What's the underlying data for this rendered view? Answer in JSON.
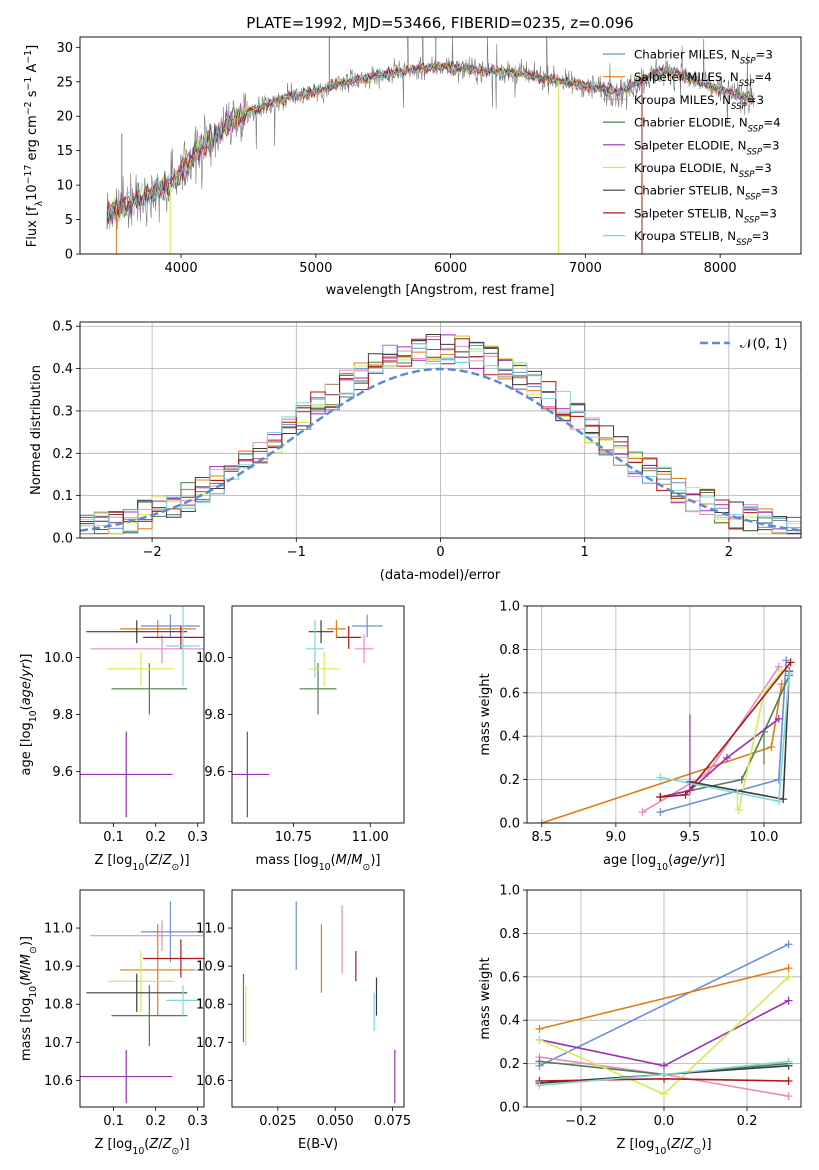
{
  "chart_data": [
    {
      "id": "spectrum",
      "type": "line",
      "title": "PLATE=1992, MJD=53466, FIBERID=0235, z=0.096",
      "xlabel": "wavelength [Angstrom, rest frame]",
      "ylabel": "Flux [f_λ10^{-17} erg cm^{-2} s^{-1} A^{-1}]",
      "xlim": [
        3250,
        8600
      ],
      "ylim": [
        0,
        31.5
      ],
      "xticks": [
        4000,
        5000,
        6000,
        7000,
        8000
      ],
      "yticks": [
        0,
        5,
        10,
        15,
        20,
        25,
        30
      ],
      "grid": false,
      "legend_position": "right",
      "series": [
        {
          "name": "Chabrier MILES, N_SSP=3",
          "color": "#6a8fdb"
        },
        {
          "name": "Salpeter MILES, N_SSP=4",
          "color": "#e07b1a"
        },
        {
          "name": "Kroupa MILES, N_SSP=3",
          "color": "#e88cc0"
        },
        {
          "name": "Chabrier ELODIE, N_SSP=4",
          "color": "#4f7f4f"
        },
        {
          "name": "Salpeter ELODIE, N_SSP=3",
          "color": "#9a2fb0"
        },
        {
          "name": "Kroupa ELODIE, N_SSP=3",
          "color": "#d6ea55"
        },
        {
          "name": "Chabrier STELIB, N_SSP=3",
          "color": "#3c3c3c"
        },
        {
          "name": "Salpeter STELIB, N_SSP=3",
          "color": "#b01818"
        },
        {
          "name": "Kroupa STELIB, N_SSP=3",
          "color": "#7fd8d8"
        }
      ],
      "continuum": [
        [
          3450,
          6.2
        ],
        [
          3550,
          6.6
        ],
        [
          3650,
          7.8
        ],
        [
          3750,
          8.6
        ],
        [
          3850,
          9.4
        ],
        [
          3950,
          10.5
        ],
        [
          4050,
          13.0
        ],
        [
          4150,
          15.5
        ],
        [
          4250,
          17.0
        ],
        [
          4350,
          19.0
        ],
        [
          4450,
          20.3
        ],
        [
          4550,
          21.0
        ],
        [
          4650,
          21.8
        ],
        [
          4750,
          22.5
        ],
        [
          4850,
          23.0
        ],
        [
          4950,
          23.4
        ],
        [
          5050,
          23.7
        ],
        [
          5150,
          24.6
        ],
        [
          5250,
          25.0
        ],
        [
          5350,
          25.4
        ],
        [
          5450,
          25.8
        ],
        [
          5550,
          26.2
        ],
        [
          5650,
          26.5
        ],
        [
          5750,
          26.8
        ],
        [
          5850,
          27.0
        ],
        [
          5950,
          27.3
        ],
        [
          6050,
          27.0
        ],
        [
          6150,
          26.8
        ],
        [
          6250,
          26.6
        ],
        [
          6350,
          26.5
        ],
        [
          6450,
          26.3
        ],
        [
          6550,
          26.0
        ],
        [
          6650,
          25.6
        ],
        [
          6750,
          25.4
        ],
        [
          6850,
          25.0
        ],
        [
          6950,
          24.6
        ],
        [
          7050,
          24.3
        ],
        [
          7150,
          23.8
        ],
        [
          7250,
          23.5
        ],
        [
          7350,
          24.5
        ],
        [
          7450,
          25.5
        ],
        [
          7550,
          26.5
        ],
        [
          7650,
          26.3
        ],
        [
          7750,
          25.6
        ],
        [
          7850,
          24.9
        ],
        [
          7950,
          24.2
        ],
        [
          8050,
          23.5
        ],
        [
          8150,
          23.0
        ],
        [
          8250,
          22.5
        ]
      ]
    },
    {
      "id": "residuals",
      "type": "histogram",
      "xlabel": "(data-model)/error",
      "ylabel": "Normed distribution",
      "xlim": [
        -2.5,
        2.5
      ],
      "ylim": [
        0,
        0.51
      ],
      "xticks": [
        -2,
        -1,
        0,
        1,
        2
      ],
      "yticks": [
        0.0,
        0.1,
        0.2,
        0.3,
        0.4,
        0.5
      ],
      "grid": true,
      "legend_position": "top-right",
      "legend": "𝒩(0, 1)",
      "reference_curve": {
        "type": "gaussian",
        "mean": 0,
        "sigma": 1,
        "color": "#5b8bd4"
      },
      "bin_edges_start": -2.5,
      "bin_width": 0.1,
      "note_values": "series hist values are per-bin densities",
      "series_colors": [
        "#6a8fdb",
        "#e07b1a",
        "#e88cc0",
        "#4f7f4f",
        "#9a2fb0",
        "#d6ea55",
        "#3c3c3c",
        "#b01818",
        "#7fd8d8"
      ]
    },
    {
      "id": "age-z",
      "type": "errorbar",
      "xlabel": "Z [log10(Z/Z⊙)]",
      "ylabel": "age [log10(age/yr)]",
      "xlim": [
        0.02,
        0.315
      ],
      "ylim": [
        9.42,
        10.18
      ],
      "xticks": [
        0.1,
        0.2,
        0.3
      ],
      "yticks": [
        9.6,
        9.8,
        10.0
      ],
      "points": [
        {
          "x": 0.235,
          "y": 10.11,
          "xerr": 0.07,
          "yerr": 0.04,
          "color": "#6a8fdb"
        },
        {
          "x": 0.205,
          "y": 10.1,
          "xerr": 0.09,
          "yerr": 0.03,
          "color": "#e07b1a"
        },
        {
          "x": 0.215,
          "y": 10.03,
          "xerr": 0.17,
          "yerr": 0.05,
          "color": "#e88cc0"
        },
        {
          "x": 0.185,
          "y": 9.89,
          "xerr": 0.09,
          "yerr": 0.09,
          "color": "#4f7f4f"
        },
        {
          "x": 0.13,
          "y": 9.59,
          "xerr": 0.11,
          "yerr": 0.15,
          "color": "#9a2fb0"
        },
        {
          "x": 0.165,
          "y": 9.96,
          "xerr": 0.08,
          "yerr": 0.06,
          "color": "#d6ea55"
        },
        {
          "x": 0.155,
          "y": 10.09,
          "xerr": 0.12,
          "yerr": 0.04,
          "color": "#3c3c3c"
        },
        {
          "x": 0.26,
          "y": 10.07,
          "xerr": 0.09,
          "yerr": 0.04,
          "color": "#b01818"
        },
        {
          "x": 0.265,
          "y": 10.04,
          "xerr": 0.04,
          "yerr": 0.14,
          "color": "#7fd8d8"
        }
      ]
    },
    {
      "id": "age-mass",
      "type": "errorbar",
      "xlabel": "mass [log10(M/M⊙)]",
      "ylabel": "",
      "xlim": [
        10.55,
        11.11
      ],
      "ylim": [
        9.42,
        10.18
      ],
      "xticks": [
        10.75,
        11.0
      ],
      "yticks": [
        9.6,
        9.8,
        10.0
      ],
      "points": [
        {
          "x": 10.99,
          "y": 10.11,
          "xerr": 0.05,
          "yerr": 0.04,
          "color": "#6a8fdb"
        },
        {
          "x": 10.89,
          "y": 10.1,
          "xerr": 0.03,
          "yerr": 0.03,
          "color": "#e07b1a"
        },
        {
          "x": 10.98,
          "y": 10.03,
          "xerr": 0.03,
          "yerr": 0.05,
          "color": "#e88cc0"
        },
        {
          "x": 10.83,
          "y": 9.89,
          "xerr": 0.06,
          "yerr": 0.09,
          "color": "#4f7f4f"
        },
        {
          "x": 10.6,
          "y": 9.59,
          "xerr": 0.07,
          "yerr": 0.15,
          "color": "#9a2fb0"
        },
        {
          "x": 10.85,
          "y": 9.96,
          "xerr": 0.05,
          "yerr": 0.06,
          "color": "#d6ea55"
        },
        {
          "x": 10.84,
          "y": 10.09,
          "xerr": 0.04,
          "yerr": 0.04,
          "color": "#3c3c3c"
        },
        {
          "x": 10.93,
          "y": 10.07,
          "xerr": 0.04,
          "yerr": 0.04,
          "color": "#b01818"
        },
        {
          "x": 10.82,
          "y": 10.03,
          "xerr": 0.03,
          "yerr": 0.1,
          "color": "#7fd8d8"
        }
      ]
    },
    {
      "id": "weight-age",
      "type": "line",
      "xlabel": "age [log10(age/yr)]",
      "ylabel": "mass weight",
      "xlim": [
        8.4,
        10.25
      ],
      "ylim": [
        0,
        1.0
      ],
      "xticks": [
        8.5,
        9.0,
        9.5,
        10.0
      ],
      "yticks": [
        0.0,
        0.2,
        0.4,
        0.6,
        0.8,
        1.0
      ],
      "grid": true,
      "series": [
        {
          "color": "#6a8fdb",
          "points": [
            [
              9.3,
              0.05
            ],
            [
              10.1,
              0.2
            ],
            [
              10.15,
              0.75
            ]
          ]
        },
        {
          "color": "#e07b1a",
          "points": [
            [
              8.5,
              0.0
            ],
            [
              10.05,
              0.35
            ],
            [
              10.12,
              0.64
            ]
          ]
        },
        {
          "color": "#e88cc0",
          "points": [
            [
              9.18,
              0.05
            ],
            [
              9.62,
              0.23
            ],
            [
              10.1,
              0.72
            ]
          ]
        },
        {
          "color": "#4f7f4f",
          "points": [
            [
              9.3,
              0.12
            ],
            [
              9.85,
              0.2
            ],
            [
              10.0,
              0.42
            ],
            [
              10.17,
              0.68
            ]
          ]
        },
        {
          "color": "#9a2fb0",
          "points": [
            [
              9.3,
              0.12
            ],
            [
              9.5,
              0.15
            ],
            [
              9.75,
              0.3
            ],
            [
              10.1,
              0.48
            ]
          ]
        },
        {
          "color": "#d6ea55",
          "points": [
            [
              9.83,
              0.06
            ],
            [
              10.0,
              0.6
            ],
            [
              10.12,
              0.7
            ]
          ]
        },
        {
          "color": "#3c3c3c",
          "points": [
            [
              9.5,
              0.19
            ],
            [
              10.13,
              0.11
            ],
            [
              10.17,
              0.7
            ]
          ]
        },
        {
          "color": "#b01818",
          "points": [
            [
              9.3,
              0.12
            ],
            [
              9.47,
              0.13
            ],
            [
              10.18,
              0.74
            ]
          ]
        },
        {
          "color": "#7fd8d8",
          "points": [
            [
              9.3,
              0.21
            ],
            [
              10.1,
              0.1
            ],
            [
              10.17,
              0.69
            ]
          ]
        }
      ],
      "errorbars": [
        {
          "x": 9.5,
          "y": 0.32,
          "yerr": 0.18,
          "color": "#9a2fb0"
        },
        {
          "x": 9.82,
          "y": 0.11,
          "yerr": 0.05,
          "color": "#d6ea55"
        },
        {
          "x": 10.0,
          "y": 0.35,
          "yerr": 0.08,
          "color": "#4f7f4f"
        }
      ]
    },
    {
      "id": "mass-z",
      "type": "errorbar",
      "xlabel": "Z [log10(Z/Z⊙)]",
      "ylabel": "mass [log10(M/M⊙)]",
      "xlim": [
        0.02,
        0.315
      ],
      "ylim": [
        10.53,
        11.1
      ],
      "xticks": [
        0.1,
        0.2,
        0.3
      ],
      "yticks": [
        10.6,
        10.7,
        10.8,
        10.9,
        11.0
      ],
      "points": [
        {
          "x": 0.235,
          "y": 10.99,
          "xerr": 0.07,
          "yerr": 0.08,
          "color": "#6a8fdb"
        },
        {
          "x": 0.205,
          "y": 10.89,
          "xerr": 0.09,
          "yerr": 0.12,
          "color": "#e07b1a"
        },
        {
          "x": 0.215,
          "y": 10.98,
          "xerr": 0.17,
          "yerr": 0.04,
          "color": "#e88cc0"
        },
        {
          "x": 0.185,
          "y": 10.77,
          "xerr": 0.09,
          "yerr": 0.08,
          "color": "#4f7f4f"
        },
        {
          "x": 0.13,
          "y": 10.61,
          "xerr": 0.11,
          "yerr": 0.07,
          "color": "#9a2fb0"
        },
        {
          "x": 0.165,
          "y": 10.86,
          "xerr": 0.08,
          "yerr": 0.08,
          "color": "#d6ea55"
        },
        {
          "x": 0.155,
          "y": 10.83,
          "xerr": 0.12,
          "yerr": 0.05,
          "color": "#3c3c3c"
        },
        {
          "x": 0.26,
          "y": 10.92,
          "xerr": 0.09,
          "yerr": 0.05,
          "color": "#b01818"
        },
        {
          "x": 0.265,
          "y": 10.81,
          "xerr": 0.04,
          "yerr": 0.04,
          "color": "#7fd8d8"
        }
      ]
    },
    {
      "id": "mass-ebv",
      "type": "errorbar",
      "xlabel": "E(B-V)",
      "ylabel": "",
      "xlim": [
        0.005,
        0.08
      ],
      "ylim": [
        10.53,
        11.1
      ],
      "xticks": [
        0.025,
        0.05,
        0.075
      ],
      "yticks": [
        10.6,
        10.7,
        10.8,
        10.9,
        11.0
      ],
      "points": [
        {
          "x": 0.033,
          "y": 10.98,
          "yerr": 0.09,
          "color": "#6a8fdb"
        },
        {
          "x": 0.044,
          "y": 10.92,
          "yerr": 0.09,
          "color": "#e07b1a"
        },
        {
          "x": 0.053,
          "y": 10.97,
          "yerr": 0.09,
          "color": "#e88cc0"
        },
        {
          "x": 0.01,
          "y": 10.79,
          "yerr": 0.09,
          "color": "#4f7f4f"
        },
        {
          "x": 0.076,
          "y": 10.61,
          "yerr": 0.07,
          "color": "#9a2fb0"
        },
        {
          "x": 0.011,
          "y": 10.77,
          "yerr": 0.08,
          "color": "#d6ea55"
        },
        {
          "x": 0.068,
          "y": 10.82,
          "yerr": 0.05,
          "color": "#3c3c3c"
        },
        {
          "x": 0.059,
          "y": 10.9,
          "yerr": 0.04,
          "color": "#b01818"
        },
        {
          "x": 0.067,
          "y": 10.78,
          "yerr": 0.05,
          "color": "#7fd8d8"
        }
      ]
    },
    {
      "id": "weight-z",
      "type": "line",
      "xlabel": "Z [log10(Z/Z⊙)]",
      "ylabel": "mass weight",
      "xlim": [
        -0.33,
        0.33
      ],
      "ylim": [
        0,
        1.0
      ],
      "xticks": [
        -0.2,
        0.0,
        0.2
      ],
      "yticks": [
        0.0,
        0.2,
        0.4,
        0.6,
        0.8,
        1.0
      ],
      "grid": true,
      "series": [
        {
          "color": "#6a8fdb",
          "points": [
            [
              -0.3,
              0.19
            ],
            [
              0.3,
              0.75
            ]
          ]
        },
        {
          "color": "#e07b1a",
          "points": [
            [
              -0.3,
              0.36
            ],
            [
              0.3,
              0.64
            ]
          ]
        },
        {
          "color": "#e88cc0",
          "points": [
            [
              -0.3,
              0.23
            ],
            [
              0.0,
              0.15
            ],
            [
              0.3,
              0.05
            ]
          ]
        },
        {
          "color": "#4f7f4f",
          "points": [
            [
              -0.3,
              0.21
            ],
            [
              0.0,
              0.15
            ],
            [
              0.3,
              0.2
            ]
          ]
        },
        {
          "color": "#9a2fb0",
          "points": [
            [
              -0.3,
              0.31
            ],
            [
              0.0,
              0.19
            ],
            [
              0.3,
              0.49
            ]
          ]
        },
        {
          "color": "#d6ea55",
          "points": [
            [
              -0.3,
              0.31
            ],
            [
              0.0,
              0.06
            ],
            [
              0.3,
              0.6
            ]
          ]
        },
        {
          "color": "#3c3c3c",
          "points": [
            [
              -0.3,
              0.11
            ],
            [
              0.0,
              0.15
            ],
            [
              0.3,
              0.19
            ]
          ]
        },
        {
          "color": "#b01818",
          "points": [
            [
              -0.3,
              0.12
            ],
            [
              0.0,
              0.13
            ],
            [
              0.3,
              0.12
            ]
          ]
        },
        {
          "color": "#7fd8d8",
          "points": [
            [
              -0.3,
              0.1
            ],
            [
              0.0,
              0.15
            ],
            [
              0.3,
              0.21
            ]
          ]
        }
      ]
    }
  ]
}
